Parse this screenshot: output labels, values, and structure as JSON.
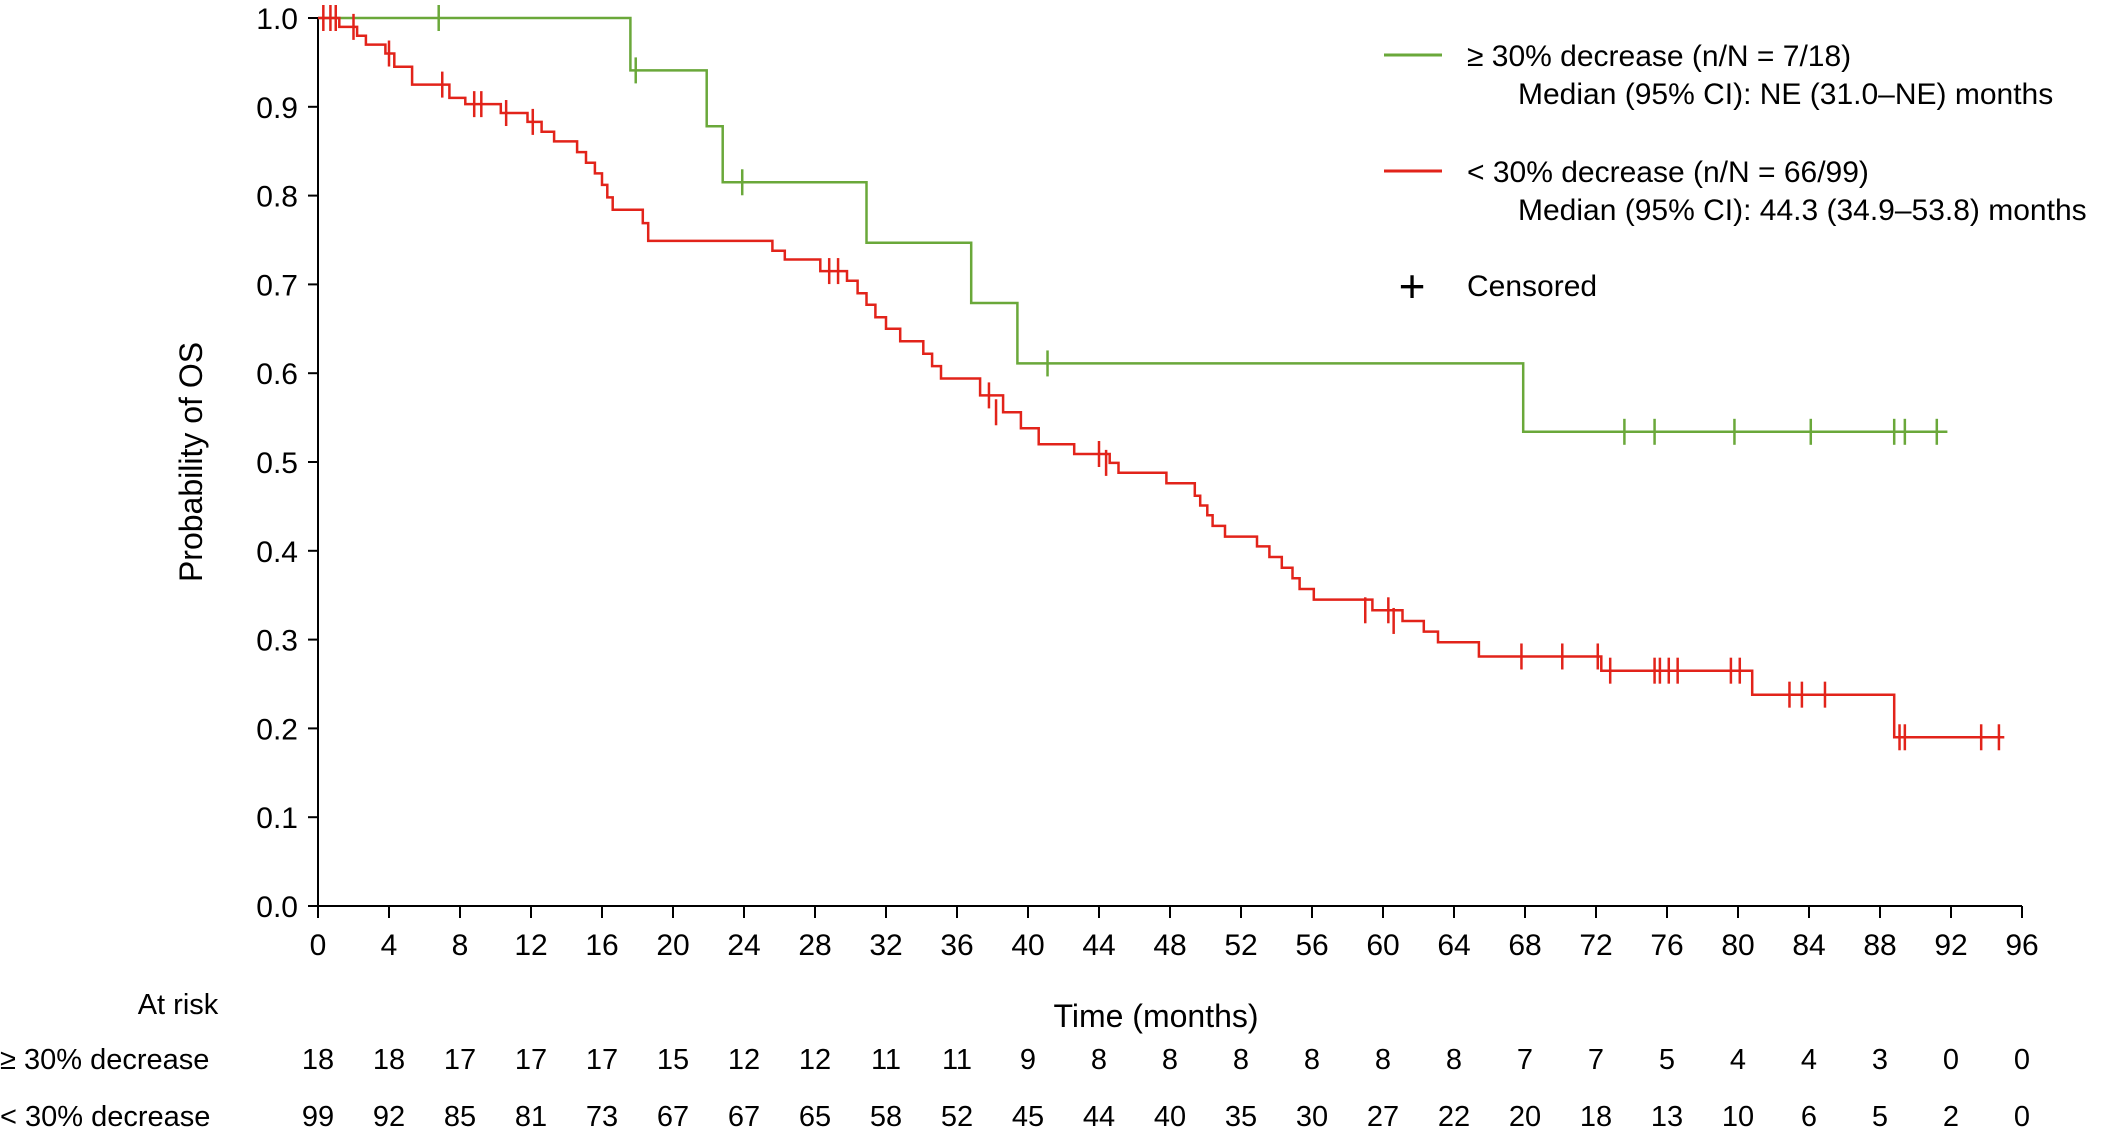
{
  "chart_data": {
    "type": "line",
    "subtype": "kaplan-meier",
    "xlabel": "Time (months)",
    "ylabel": "Probability of OS",
    "xlim": [
      0,
      96
    ],
    "ylim": [
      0,
      1.0
    ],
    "x_ticks": [
      0,
      4,
      8,
      12,
      16,
      20,
      24,
      28,
      32,
      36,
      40,
      44,
      48,
      52,
      56,
      60,
      64,
      68,
      72,
      76,
      80,
      84,
      88,
      92,
      96
    ],
    "y_ticks": [
      "0.0",
      "0.1",
      "0.2",
      "0.3",
      "0.4",
      "0.5",
      "0.6",
      "0.7",
      "0.8",
      "0.9",
      "1.0"
    ],
    "grid": false,
    "legend_position": "top-right",
    "series": [
      {
        "name": "≥ 30% decrease (n/N = 7/18)",
        "median_text": "Median (95% CI): NE (31.0–NE) months",
        "color": "#6aa83a",
        "steps": [
          [
            0,
            1.0
          ],
          [
            17.6,
            1.0
          ],
          [
            17.6,
            0.941
          ],
          [
            21.9,
            0.941
          ],
          [
            21.9,
            0.878
          ],
          [
            22.8,
            0.878
          ],
          [
            22.8,
            0.815
          ],
          [
            30.9,
            0.815
          ],
          [
            30.9,
            0.747
          ],
          [
            36.8,
            0.747
          ],
          [
            36.8,
            0.679
          ],
          [
            39.4,
            0.679
          ],
          [
            39.4,
            0.611
          ],
          [
            67.9,
            0.611
          ],
          [
            67.9,
            0.534
          ],
          [
            91.8,
            0.534
          ]
        ],
        "censored": [
          [
            6.8,
            1.0
          ],
          [
            17.9,
            0.941
          ],
          [
            23.9,
            0.815
          ],
          [
            41.1,
            0.611
          ],
          [
            73.6,
            0.534
          ],
          [
            75.3,
            0.534
          ],
          [
            79.8,
            0.534
          ],
          [
            84.1,
            0.534
          ],
          [
            88.8,
            0.534
          ],
          [
            89.4,
            0.534
          ],
          [
            91.2,
            0.534
          ]
        ]
      },
      {
        "name": "< 30% decrease (n/N = 66/99)",
        "median_text": "Median (95% CI): 44.3 (34.9–53.8) months",
        "color": "#e2231a",
        "steps": [
          [
            0,
            1.0
          ],
          [
            1.2,
            1.0
          ],
          [
            1.2,
            0.99
          ],
          [
            2.2,
            0.99
          ],
          [
            2.2,
            0.98
          ],
          [
            2.7,
            0.98
          ],
          [
            2.7,
            0.97
          ],
          [
            3.8,
            0.97
          ],
          [
            3.8,
            0.96
          ],
          [
            4.3,
            0.96
          ],
          [
            4.3,
            0.945
          ],
          [
            5.3,
            0.945
          ],
          [
            5.3,
            0.925
          ],
          [
            7.4,
            0.925
          ],
          [
            7.4,
            0.91
          ],
          [
            8.3,
            0.91
          ],
          [
            8.3,
            0.903
          ],
          [
            10.3,
            0.903
          ],
          [
            10.3,
            0.893
          ],
          [
            11.8,
            0.893
          ],
          [
            11.8,
            0.883
          ],
          [
            12.6,
            0.883
          ],
          [
            12.6,
            0.872
          ],
          [
            13.3,
            0.872
          ],
          [
            13.3,
            0.861
          ],
          [
            14.6,
            0.861
          ],
          [
            14.6,
            0.849
          ],
          [
            15.1,
            0.849
          ],
          [
            15.1,
            0.837
          ],
          [
            15.6,
            0.837
          ],
          [
            15.6,
            0.825
          ],
          [
            16.0,
            0.825
          ],
          [
            16.0,
            0.812
          ],
          [
            16.3,
            0.812
          ],
          [
            16.3,
            0.798
          ],
          [
            16.6,
            0.798
          ],
          [
            16.6,
            0.784
          ],
          [
            18.3,
            0.784
          ],
          [
            18.3,
            0.769
          ],
          [
            18.6,
            0.769
          ],
          [
            18.6,
            0.749
          ],
          [
            25.6,
            0.749
          ],
          [
            25.6,
            0.738
          ],
          [
            26.3,
            0.738
          ],
          [
            26.3,
            0.728
          ],
          [
            28.3,
            0.728
          ],
          [
            28.3,
            0.715
          ],
          [
            29.8,
            0.715
          ],
          [
            29.8,
            0.704
          ],
          [
            30.4,
            0.704
          ],
          [
            30.4,
            0.69
          ],
          [
            30.9,
            0.69
          ],
          [
            30.9,
            0.677
          ],
          [
            31.4,
            0.677
          ],
          [
            31.4,
            0.663
          ],
          [
            32.0,
            0.663
          ],
          [
            32.0,
            0.65
          ],
          [
            32.8,
            0.65
          ],
          [
            32.8,
            0.636
          ],
          [
            34.1,
            0.636
          ],
          [
            34.1,
            0.622
          ],
          [
            34.6,
            0.622
          ],
          [
            34.6,
            0.608
          ],
          [
            35.1,
            0.608
          ],
          [
            35.1,
            0.594
          ],
          [
            37.3,
            0.594
          ],
          [
            37.3,
            0.575
          ],
          [
            38.6,
            0.575
          ],
          [
            38.6,
            0.556
          ],
          [
            39.6,
            0.556
          ],
          [
            39.6,
            0.538
          ],
          [
            40.6,
            0.538
          ],
          [
            40.6,
            0.52
          ],
          [
            42.6,
            0.52
          ],
          [
            42.6,
            0.509
          ],
          [
            44.6,
            0.509
          ],
          [
            44.6,
            0.499
          ],
          [
            45.1,
            0.499
          ],
          [
            45.1,
            0.488
          ],
          [
            47.8,
            0.488
          ],
          [
            47.8,
            0.476
          ],
          [
            49.4,
            0.476
          ],
          [
            49.4,
            0.462
          ],
          [
            49.7,
            0.462
          ],
          [
            49.7,
            0.451
          ],
          [
            50.1,
            0.451
          ],
          [
            50.1,
            0.44
          ],
          [
            50.4,
            0.44
          ],
          [
            50.4,
            0.428
          ],
          [
            51.1,
            0.428
          ],
          [
            51.1,
            0.416
          ],
          [
            52.9,
            0.416
          ],
          [
            52.9,
            0.405
          ],
          [
            53.6,
            0.405
          ],
          [
            53.6,
            0.393
          ],
          [
            54.3,
            0.393
          ],
          [
            54.3,
            0.381
          ],
          [
            54.9,
            0.381
          ],
          [
            54.9,
            0.369
          ],
          [
            55.3,
            0.369
          ],
          [
            55.3,
            0.357
          ],
          [
            56.1,
            0.357
          ],
          [
            56.1,
            0.345
          ],
          [
            59.4,
            0.345
          ],
          [
            59.4,
            0.333
          ],
          [
            61.1,
            0.333
          ],
          [
            61.1,
            0.321
          ],
          [
            62.3,
            0.321
          ],
          [
            62.3,
            0.309
          ],
          [
            63.1,
            0.309
          ],
          [
            63.1,
            0.297
          ],
          [
            65.4,
            0.297
          ],
          [
            65.4,
            0.281
          ],
          [
            72.3,
            0.281
          ],
          [
            72.3,
            0.265
          ],
          [
            80.8,
            0.265
          ],
          [
            80.8,
            0.238
          ],
          [
            88.8,
            0.238
          ],
          [
            88.8,
            0.19
          ],
          [
            95.0,
            0.19
          ]
        ],
        "censored": [
          [
            0.3,
            1.0
          ],
          [
            0.7,
            1.0
          ],
          [
            1.0,
            1.0
          ],
          [
            2.0,
            0.99
          ],
          [
            4.0,
            0.96
          ],
          [
            7.0,
            0.925
          ],
          [
            8.8,
            0.903
          ],
          [
            9.2,
            0.903
          ],
          [
            10.6,
            0.893
          ],
          [
            12.1,
            0.883
          ],
          [
            28.8,
            0.715
          ],
          [
            29.3,
            0.715
          ],
          [
            37.8,
            0.575
          ],
          [
            38.2,
            0.556
          ],
          [
            44.0,
            0.509
          ],
          [
            44.4,
            0.499
          ],
          [
            59.0,
            0.333
          ],
          [
            60.3,
            0.333
          ],
          [
            60.6,
            0.321
          ],
          [
            67.8,
            0.281
          ],
          [
            70.1,
            0.281
          ],
          [
            72.1,
            0.281
          ],
          [
            72.8,
            0.265
          ],
          [
            75.3,
            0.265
          ],
          [
            75.6,
            0.265
          ],
          [
            76.1,
            0.265
          ],
          [
            76.6,
            0.265
          ],
          [
            79.6,
            0.265
          ],
          [
            80.1,
            0.265
          ],
          [
            82.9,
            0.238
          ],
          [
            83.6,
            0.238
          ],
          [
            84.9,
            0.238
          ],
          [
            89.1,
            0.19
          ],
          [
            89.4,
            0.19
          ],
          [
            93.7,
            0.19
          ],
          [
            94.7,
            0.19
          ]
        ]
      }
    ],
    "censored_legend_label": "Censored",
    "censored_legend_symbol": "+",
    "at_risk": {
      "title": "At risk",
      "rows": [
        {
          "label": "≥ 30% decrease",
          "values": [
            "18",
            "18",
            "17",
            "17",
            "17",
            "15",
            "12",
            "12",
            "11",
            "11",
            "9",
            "8",
            "8",
            "8",
            "8",
            "8",
            "8",
            "7",
            "7",
            "5",
            "4",
            "4",
            "3",
            "0",
            "0"
          ]
        },
        {
          "label": "< 30% decrease",
          "values": [
            "99",
            "92",
            "85",
            "81",
            "73",
            "67",
            "67",
            "65",
            "58",
            "52",
            "45",
            "44",
            "40",
            "35",
            "30",
            "27",
            "22",
            "20",
            "18",
            "13",
            "10",
            "6",
            "5",
            "2",
            "0"
          ]
        }
      ]
    }
  }
}
